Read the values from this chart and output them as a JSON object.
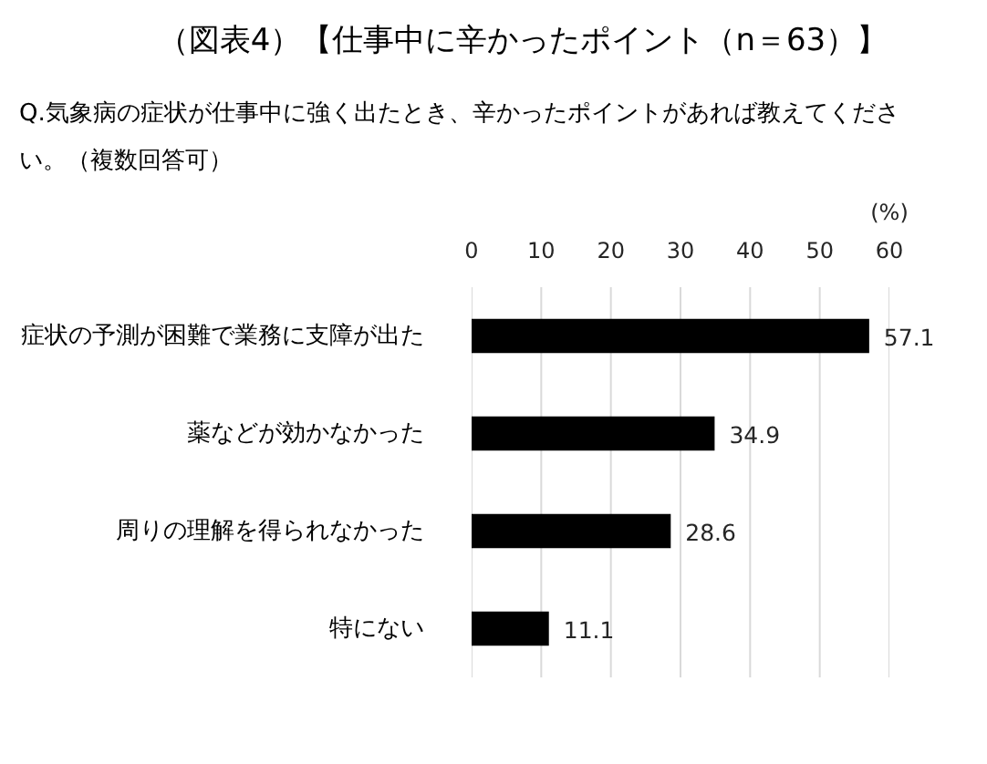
{
  "chart_data": {
    "type": "bar",
    "orientation": "horizontal",
    "title": "（図表4）【仕事中に辛かったポイント（n＝63）】",
    "subtitle": "Q.気象病の症状が仕事中に強く出たとき、辛かったポイントがあれば教えてください。（複数回答可）",
    "xlabel": "(%)",
    "categories": [
      "症状の予測が困難で業務に支障が出た",
      "薬などが効かなかった",
      "周りの理解を得られなかった",
      "特にない"
    ],
    "values": [
      57.1,
      34.9,
      28.6,
      11.1
    ],
    "color": "#000000",
    "xlim": [
      0,
      60
    ],
    "xticks": [
      0,
      10,
      20,
      30,
      40,
      50,
      60
    ],
    "grid": "x",
    "data_labels": true
  }
}
